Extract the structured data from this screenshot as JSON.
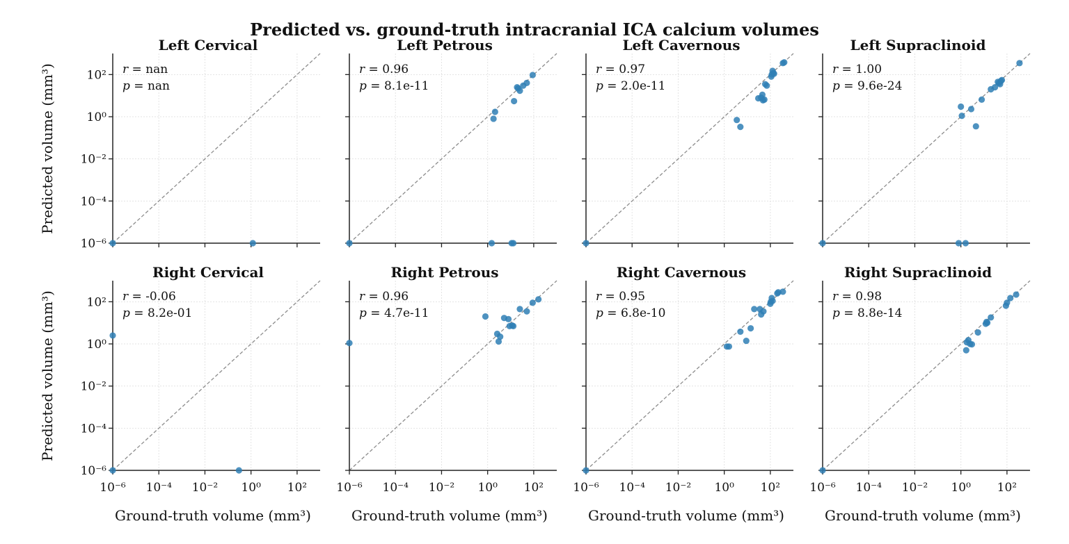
{
  "figure": {
    "title": "Predicted vs. ground-truth intracranial ICA calcium volumes",
    "xlabel": "Ground-truth volume (mm³)",
    "ylabel": "Predicted volume (mm³)"
  },
  "colors": {
    "point": "#2f7fb5",
    "diagonal": "#8c8c8c",
    "grid": "#e3e3e3",
    "axis": "#222222"
  },
  "chart_data": [
    {
      "type": "scatter",
      "title": "Left Cervical",
      "stats": {
        "r": "nan",
        "p": "nan"
      },
      "xscale": "log",
      "yscale": "log",
      "xlim": [
        1e-06,
        1000
      ],
      "ylim": [
        1e-06,
        1000
      ],
      "reference_line": "y = x",
      "grid": true,
      "points": [
        [
          1e-06,
          1e-06
        ],
        [
          1.2,
          1e-06
        ]
      ]
    },
    {
      "type": "scatter",
      "title": "Left Petrous",
      "stats": {
        "r": "0.96",
        "p": "8.1e-11"
      },
      "xscale": "log",
      "yscale": "log",
      "xlim": [
        1e-06,
        1000
      ],
      "ylim": [
        1e-06,
        1000
      ],
      "reference_line": "y = x",
      "grid": true,
      "points": [
        [
          1e-06,
          1e-06
        ],
        [
          1.5,
          1e-06
        ],
        [
          11,
          1e-06
        ],
        [
          13,
          1e-06
        ],
        [
          1.8,
          0.8
        ],
        [
          2.1,
          1.7
        ],
        [
          14,
          5.5
        ],
        [
          19,
          25
        ],
        [
          21,
          22
        ],
        [
          25,
          17
        ],
        [
          35,
          30
        ],
        [
          50,
          40
        ],
        [
          90,
          95
        ]
      ]
    },
    {
      "type": "scatter",
      "title": "Left Cavernous",
      "stats": {
        "r": "0.97",
        "p": "2.0e-11"
      },
      "xscale": "log",
      "yscale": "log",
      "xlim": [
        1e-06,
        1000
      ],
      "ylim": [
        1e-06,
        1000
      ],
      "reference_line": "y = x",
      "grid": true,
      "points": [
        [
          1e-06,
          1e-06
        ],
        [
          3.5,
          0.7
        ],
        [
          5,
          0.33
        ],
        [
          30,
          7.5
        ],
        [
          40,
          8
        ],
        [
          45,
          11
        ],
        [
          48,
          6
        ],
        [
          55,
          6.5
        ],
        [
          60,
          35
        ],
        [
          70,
          30
        ],
        [
          110,
          80
        ],
        [
          115,
          100
        ],
        [
          125,
          150
        ],
        [
          135,
          120
        ],
        [
          145,
          110
        ],
        [
          350,
          350
        ],
        [
          400,
          380
        ]
      ]
    },
    {
      "type": "scatter",
      "title": "Left Supraclinoid",
      "stats": {
        "r": "1.00",
        "p": "9.6e-24"
      },
      "xscale": "log",
      "yscale": "log",
      "xlim": [
        1e-06,
        1000
      ],
      "ylim": [
        1e-06,
        1000
      ],
      "reference_line": "y = x",
      "grid": true,
      "points": [
        [
          1e-06,
          1e-06
        ],
        [
          0.8,
          1e-06
        ],
        [
          1.6,
          1e-06
        ],
        [
          1,
          3
        ],
        [
          1.1,
          1.1
        ],
        [
          2.8,
          2.3
        ],
        [
          4.5,
          0.35
        ],
        [
          8,
          6.5
        ],
        [
          20,
          20
        ],
        [
          30,
          25
        ],
        [
          40,
          45
        ],
        [
          45,
          40
        ],
        [
          50,
          35
        ],
        [
          55,
          50
        ],
        [
          60,
          55
        ],
        [
          350,
          350
        ]
      ]
    },
    {
      "type": "scatter",
      "title": "Right Cervical",
      "stats": {
        "r": "-0.06",
        "p": "8.2e-01"
      },
      "xscale": "log",
      "yscale": "log",
      "xlim": [
        1e-06,
        1000
      ],
      "ylim": [
        1e-06,
        1000
      ],
      "reference_line": "y = x",
      "grid": true,
      "points": [
        [
          1e-06,
          1e-06
        ],
        [
          0.3,
          1e-06
        ],
        [
          1e-06,
          2.5
        ]
      ]
    },
    {
      "type": "scatter",
      "title": "Right Petrous",
      "stats": {
        "r": "0.96",
        "p": "4.7e-11"
      },
      "xscale": "log",
      "yscale": "log",
      "xlim": [
        1e-06,
        1000
      ],
      "ylim": [
        1e-06,
        1000
      ],
      "reference_line": "y = x",
      "grid": true,
      "points": [
        [
          1e-06,
          1.1
        ],
        [
          0.8,
          20
        ],
        [
          2.6,
          3
        ],
        [
          3,
          1.3
        ],
        [
          3.5,
          2.2
        ],
        [
          5.2,
          17
        ],
        [
          8,
          15
        ],
        [
          9,
          7
        ],
        [
          11.5,
          7.5
        ],
        [
          13,
          7
        ],
        [
          25,
          45
        ],
        [
          50,
          35
        ],
        [
          90,
          90
        ],
        [
          160,
          130
        ]
      ]
    },
    {
      "type": "scatter",
      "title": "Right Cavernous",
      "stats": {
        "r": "0.95",
        "p": "6.8e-10"
      },
      "xscale": "log",
      "yscale": "log",
      "xlim": [
        1e-06,
        1000
      ],
      "ylim": [
        1e-06,
        1000
      ],
      "reference_line": "y = x",
      "grid": true,
      "points": [
        [
          1e-06,
          1e-06
        ],
        [
          1.3,
          0.75
        ],
        [
          1.6,
          0.75
        ],
        [
          5,
          3.8
        ],
        [
          9,
          1.4
        ],
        [
          14,
          5.5
        ],
        [
          20,
          45
        ],
        [
          35,
          45
        ],
        [
          40,
          25
        ],
        [
          50,
          35
        ],
        [
          100,
          80
        ],
        [
          105,
          100
        ],
        [
          115,
          150
        ],
        [
          125,
          110
        ],
        [
          200,
          250
        ],
        [
          220,
          280
        ],
        [
          350,
          300
        ]
      ]
    },
    {
      "type": "scatter",
      "title": "Right Supraclinoid",
      "stats": {
        "r": "0.98",
        "p": "8.8e-14"
      },
      "xscale": "log",
      "yscale": "log",
      "xlim": [
        1e-06,
        1000
      ],
      "ylim": [
        1e-06,
        1000
      ],
      "reference_line": "y = x",
      "grid": true,
      "points": [
        [
          1e-06,
          1e-06
        ],
        [
          1.7,
          0.5
        ],
        [
          1.8,
          1.2
        ],
        [
          2.1,
          1.5
        ],
        [
          2.5,
          1
        ],
        [
          3,
          0.95
        ],
        [
          5.5,
          3.5
        ],
        [
          12,
          9
        ],
        [
          13,
          11
        ],
        [
          14,
          10
        ],
        [
          20,
          18
        ],
        [
          90,
          65
        ],
        [
          100,
          90
        ],
        [
          140,
          150
        ],
        [
          250,
          220
        ]
      ]
    }
  ]
}
